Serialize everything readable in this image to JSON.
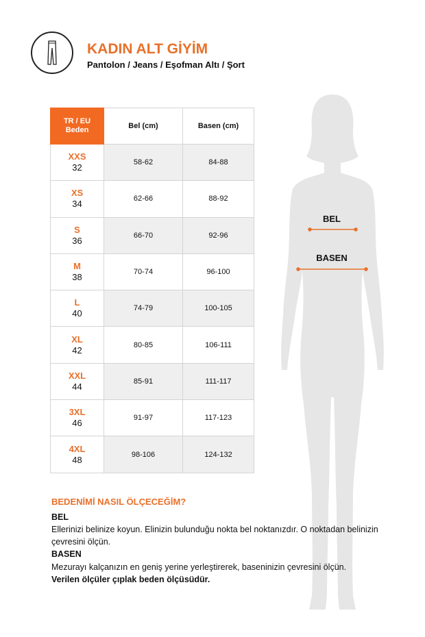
{
  "header": {
    "icon": "pants-icon",
    "title": "KADIN ALT GİYİM",
    "subtitle": "Pantolon / Jeans / Eşofman Altı / Şort"
  },
  "table": {
    "headers": [
      "TR / EU",
      "Beden",
      "Bel (cm)",
      "Basen (cm)"
    ],
    "rows": [
      {
        "size": "XXS",
        "eu": "32",
        "bel": "58-62",
        "basen": "84-88"
      },
      {
        "size": "XS",
        "eu": "34",
        "bel": "62-66",
        "basen": "88-92"
      },
      {
        "size": "S",
        "eu": "36",
        "bel": "66-70",
        "basen": "92-96"
      },
      {
        "size": "M",
        "eu": "38",
        "bel": "70-74",
        "basen": "96-100"
      },
      {
        "size": "L",
        "eu": "40",
        "bel": "74-79",
        "basen": "100-105"
      },
      {
        "size": "XL",
        "eu": "42",
        "bel": "80-85",
        "basen": "106-111"
      },
      {
        "size": "XXL",
        "eu": "44",
        "bel": "85-91",
        "basen": "111-117"
      },
      {
        "size": "3XL",
        "eu": "46",
        "bel": "91-97",
        "basen": "117-123"
      },
      {
        "size": "4XL",
        "eu": "48",
        "bel": "98-106",
        "basen": "124-132"
      }
    ]
  },
  "figure": {
    "bel_label": "BEL",
    "basen_label": "BASEN",
    "accent": "#e8702a",
    "silhouette": "#e6e6e6"
  },
  "guide": {
    "heading": "BEDENİMİ NASIL ÖLÇECEĞİM?",
    "bel_title": "BEL",
    "bel_text": "Ellerinizi belinize koyun. Elinizin bulunduğu nokta bel noktanızdır. O noktadan belinizin çevresini ölçün.",
    "basen_title": "BASEN",
    "basen_text": "Mezurayı kalçanızın en geniş yerine yerleştirerek, baseninizin çevresini ölçün.",
    "note": "Verilen ölçüler çıplak beden ölçüsüdür."
  }
}
